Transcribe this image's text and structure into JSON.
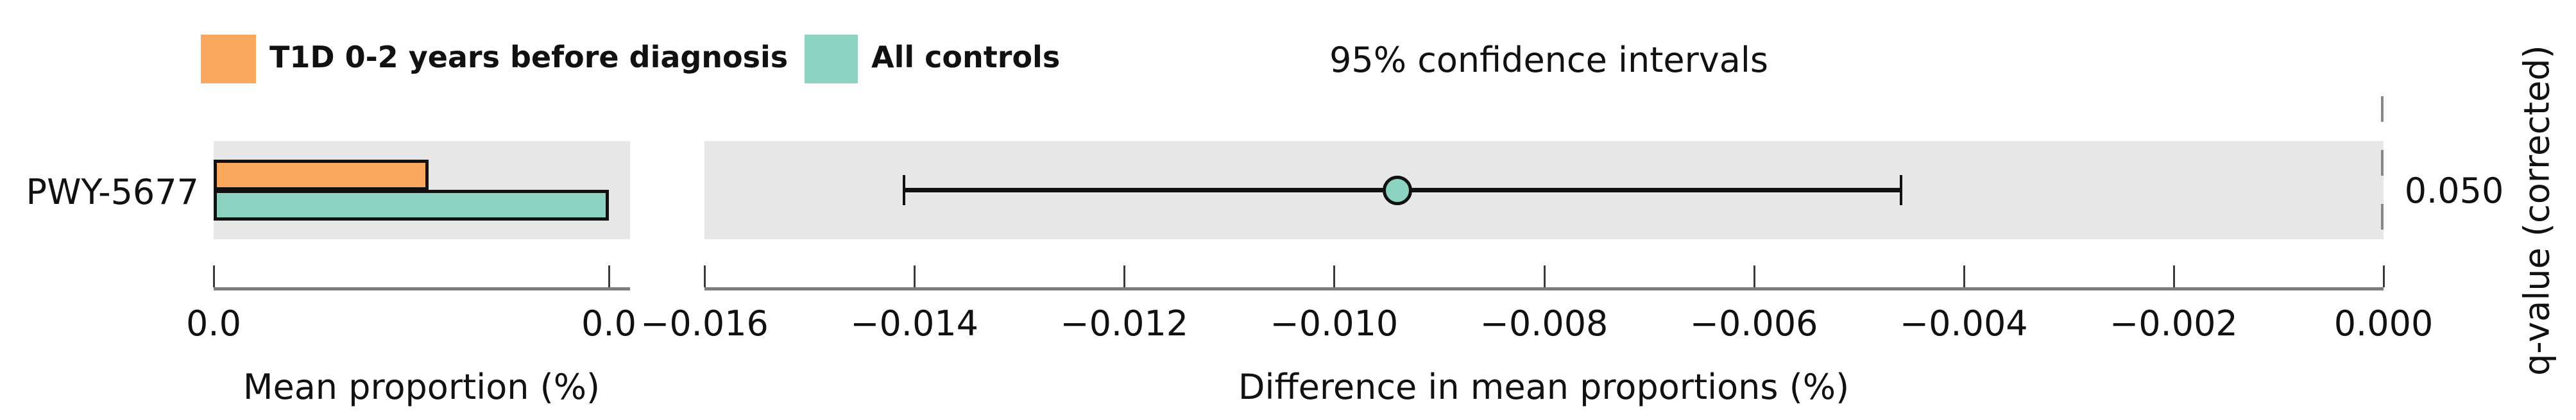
{
  "legend": {
    "items": [
      {
        "key": "t1d",
        "label": "T1D 0-2 years before diagnosis"
      },
      {
        "key": "controls",
        "label": "All controls"
      }
    ]
  },
  "titles": {
    "ci_panel_title": "95% confidence intervals",
    "left_axis_title": "Mean proportion (%)",
    "right_axis_title": "Difference in mean proportions (%)",
    "right_y_axis_title": "q-value (corrected)"
  },
  "chart_data": {
    "type": "bar",
    "subtype": "stamp-extended-error-bar",
    "features": [
      "PWY-5677"
    ],
    "groups": [
      "T1D 0-2 years before diagnosis",
      "All controls"
    ],
    "colors": {
      "t1d": "#f9a85e",
      "controls": "#8cd2c0",
      "band": "#e7e7e7",
      "error_bar": "#111111"
    },
    "mean_proportion_panel": {
      "xlabel": "Mean proportion (%)",
      "tick_labels": [
        "0.0",
        "0.0"
      ],
      "axis_display_max": 0.0204,
      "series": [
        {
          "name": "T1D 0-2 years before diagnosis",
          "values": [
            0.0111
          ]
        },
        {
          "name": "All controls",
          "values": [
            0.0204
          ]
        }
      ],
      "note": "values estimated from bar lengths; axis tick labels both render as 0.0"
    },
    "difference_panel": {
      "title": "95% confidence intervals",
      "xlabel": "Difference in mean proportions (%)",
      "x_min": -0.016,
      "x_max": 0.0,
      "tick_step": 0.002,
      "tick_labels": [
        "−0.016",
        "−0.014",
        "−0.012",
        "−0.010",
        "−0.008",
        "−0.006",
        "−0.004",
        "−0.002",
        "0.000"
      ],
      "rows": [
        {
          "feature": "PWY-5677",
          "mean_difference": -0.0094,
          "ci_lower": -0.0141,
          "ci_upper": -0.0046,
          "q_value": "0.050"
        }
      ]
    }
  }
}
